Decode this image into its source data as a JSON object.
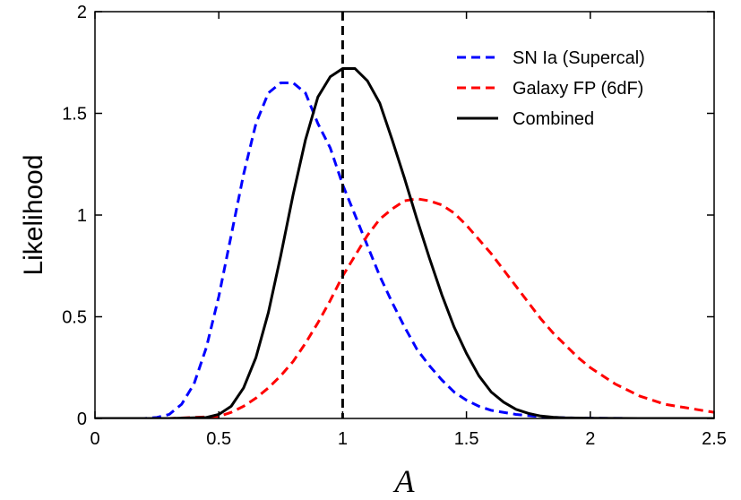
{
  "chart_data": {
    "type": "line",
    "xlabel": "A",
    "ylabel": "Likelihood",
    "xlim": [
      0,
      2.5
    ],
    "ylim": [
      0,
      2
    ],
    "xticks": [
      0,
      0.5,
      1,
      1.5,
      2,
      2.5
    ],
    "xtick_labels": [
      "0",
      "0.5",
      "1",
      "1.5",
      "2",
      "2.5"
    ],
    "yticks": [
      0,
      0.5,
      1,
      1.5,
      2
    ],
    "ytick_labels": [
      "0",
      "0.5",
      "1",
      "1.5",
      "2"
    ],
    "grid": false,
    "legend_position": "top-right",
    "reference_line": {
      "x": 1,
      "color": "#000000",
      "style": "dashed"
    },
    "series": [
      {
        "name": "SN Ia (Supercal)",
        "color": "#0000ff",
        "style": "dashed",
        "x": [
          0,
          0.1,
          0.2,
          0.25,
          0.3,
          0.35,
          0.4,
          0.45,
          0.5,
          0.55,
          0.6,
          0.65,
          0.7,
          0.75,
          0.8,
          0.85,
          0.9,
          0.95,
          1.0,
          1.05,
          1.1,
          1.15,
          1.2,
          1.25,
          1.3,
          1.35,
          1.4,
          1.45,
          1.5,
          1.55,
          1.6,
          1.7,
          1.8,
          1.9,
          2.0,
          2.2,
          2.5
        ],
        "y": [
          0,
          0,
          0,
          0.005,
          0.02,
          0.07,
          0.17,
          0.35,
          0.6,
          0.9,
          1.2,
          1.45,
          1.6,
          1.65,
          1.65,
          1.6,
          1.45,
          1.33,
          1.15,
          1.0,
          0.85,
          0.7,
          0.57,
          0.45,
          0.34,
          0.26,
          0.19,
          0.13,
          0.09,
          0.06,
          0.04,
          0.02,
          0.008,
          0.003,
          0.001,
          0,
          0
        ]
      },
      {
        "name": "Galaxy FP (6dF)",
        "color": "#ff0000",
        "style": "dashed",
        "x": [
          0,
          0.3,
          0.5,
          0.55,
          0.6,
          0.65,
          0.7,
          0.75,
          0.8,
          0.85,
          0.9,
          0.95,
          1.0,
          1.05,
          1.1,
          1.15,
          1.2,
          1.25,
          1.3,
          1.35,
          1.4,
          1.45,
          1.5,
          1.55,
          1.6,
          1.65,
          1.7,
          1.75,
          1.8,
          1.85,
          1.9,
          1.95,
          2.0,
          2.1,
          2.2,
          2.3,
          2.4,
          2.5
        ],
        "y": [
          0,
          0,
          0.01,
          0.03,
          0.06,
          0.1,
          0.15,
          0.21,
          0.28,
          0.37,
          0.47,
          0.58,
          0.7,
          0.8,
          0.9,
          0.98,
          1.03,
          1.07,
          1.08,
          1.07,
          1.05,
          1.01,
          0.95,
          0.88,
          0.81,
          0.73,
          0.65,
          0.57,
          0.49,
          0.42,
          0.36,
          0.3,
          0.25,
          0.17,
          0.11,
          0.07,
          0.05,
          0.03
        ]
      },
      {
        "name": "Combined",
        "color": "#000000",
        "style": "solid",
        "x": [
          0,
          0.3,
          0.45,
          0.5,
          0.55,
          0.6,
          0.65,
          0.7,
          0.75,
          0.8,
          0.85,
          0.9,
          0.95,
          1.0,
          1.05,
          1.1,
          1.15,
          1.2,
          1.25,
          1.3,
          1.35,
          1.4,
          1.45,
          1.5,
          1.55,
          1.6,
          1.65,
          1.7,
          1.75,
          1.8,
          1.85,
          1.9,
          2.0,
          2.2,
          2.5
        ],
        "y": [
          0,
          0,
          0.005,
          0.02,
          0.06,
          0.15,
          0.3,
          0.52,
          0.8,
          1.1,
          1.37,
          1.58,
          1.68,
          1.72,
          1.72,
          1.66,
          1.55,
          1.37,
          1.18,
          0.98,
          0.79,
          0.61,
          0.45,
          0.32,
          0.21,
          0.13,
          0.08,
          0.045,
          0.025,
          0.012,
          0.006,
          0.003,
          0.001,
          0,
          0
        ]
      }
    ]
  }
}
